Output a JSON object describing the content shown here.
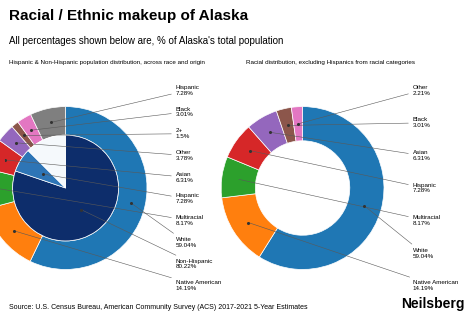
{
  "title": "Racial / Ethnic makeup of Alaska",
  "subtitle": "All percentages shown below are, % of Alaska's total population",
  "annotations": [
    "Source: U.S. Census Bureau, American Community Survey (ACS) 2017-2021 5-Year Estimates",
    "Neilsberg"
  ],
  "chart_data": [
    {
      "type": "pie",
      "title": "Hispanic & Non-Hispanic population distribution, across race and origin",
      "data_labels": true,
      "series": [
        {
          "categories": [
            "White\n59.04%",
            "Native American\n14.19%",
            "Multiracial\n8.17%",
            "Asian\n6.31%",
            "Other\n3.78%",
            "2+\n1.5%",
            "Black\n3.01%",
            "Hispanic\n7.28%"
          ],
          "values": [
            59.04,
            14.19,
            8.17,
            6.31,
            3.78,
            1.5,
            3.01,
            7.28
          ]
        },
        {
          "categories": [
            "Non-Hispanic\n80.22%",
            "Hispanic\n7.28%",
            null
          ],
          "values": [
            80.22,
            7.28,
            12.5
          ],
          "colors": [
            "#0d2d6b",
            "#2e75b6",
            "#f5f9fc"
          ]
        }
      ]
    },
    {
      "type": "donut",
      "title": "Racial distribution, excluding Hispanics from racial categories",
      "data_labels": true,
      "categories": [
        "White\n59.04%",
        "Native American\n14.19%",
        "Multiracial\n8.17%",
        "Hispanic\n7.28%",
        "Asian\n6.31%",
        "Black\n3.01%",
        "Other\n2.21%"
      ],
      "values": [
        59.04,
        14.19,
        8.17,
        7.28,
        6.31,
        3.01,
        2.21
      ]
    }
  ]
}
